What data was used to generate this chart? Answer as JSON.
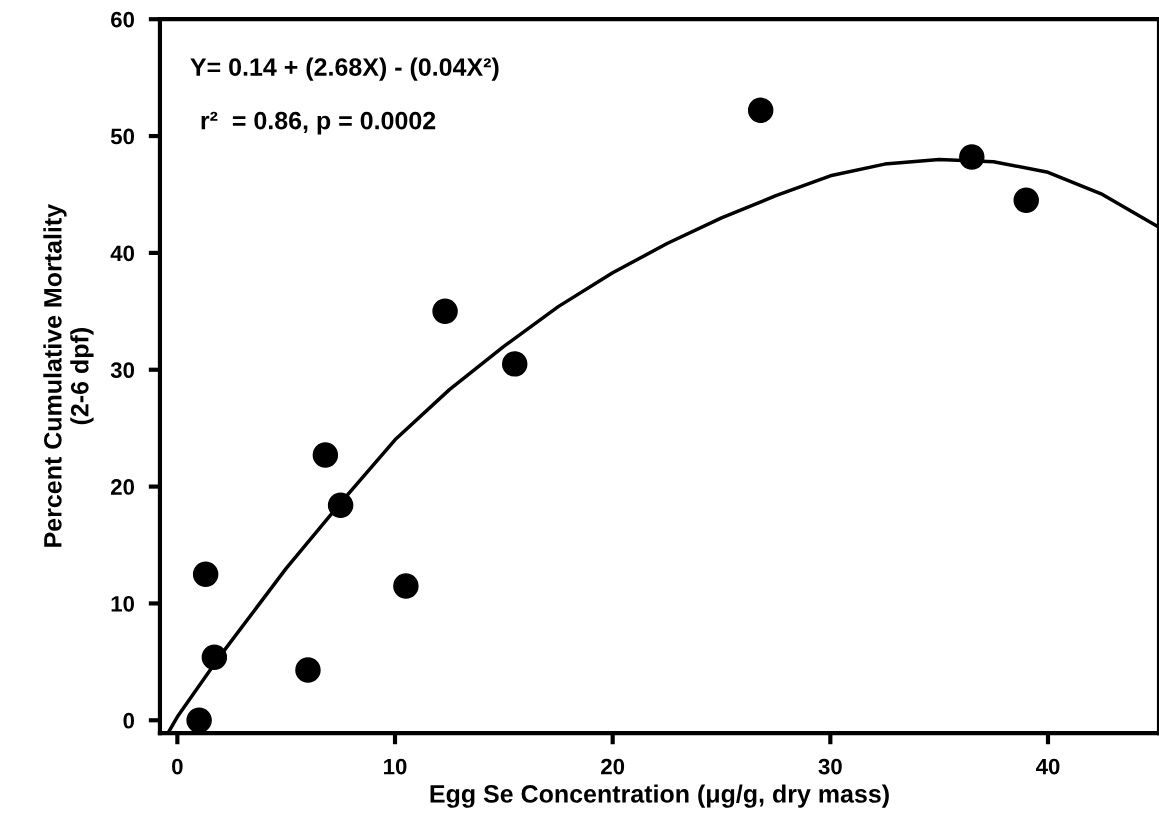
{
  "chart_data": {
    "type": "scatter",
    "xlabel": "Egg Se Concentration (μg/g, dry mass)",
    "ylabel": "Percent Cumulative Mortality\n(2-6 dpf)",
    "annotations": [
      "Y= 0.14 + (2.68X) - (0.04X²)",
      "r²  = 0.86, p = 0.0002"
    ],
    "xlim": [
      -0.8,
      45.1
    ],
    "ylim": [
      -1.1,
      60
    ],
    "xticks": [
      0,
      10,
      20,
      30,
      40
    ],
    "yticks": [
      0,
      10,
      20,
      30,
      40,
      50,
      60
    ],
    "grid": false,
    "legend": false,
    "marker": "circle",
    "series": [
      {
        "color": "#000000",
        "x": [
          1.0,
          1.3,
          1.7,
          6.0,
          6.8,
          7.5,
          10.5,
          12.3,
          15.5,
          26.8,
          36.5,
          39.0
        ],
        "values": [
          0,
          12.5,
          5.4,
          4.3,
          22.7,
          18.4,
          11.5,
          35,
          30.5,
          52.2,
          48.2,
          44.5
        ]
      },
      {
        "type": "line",
        "color": "#000000",
        "marker": "none",
        "line_style": "solid",
        "x": [
          -0.4,
          0,
          2,
          5,
          7.5,
          10,
          12.5,
          15,
          17.5,
          20,
          22.5,
          25,
          27.5,
          30,
          32.5,
          35,
          37.5,
          40,
          42.5,
          45.1
        ],
        "values": [
          -1,
          0.3,
          5.6,
          13,
          18.6,
          24,
          28.3,
          32,
          35.4,
          38.3,
          40.8,
          43,
          44.9,
          46.6,
          47.6,
          48,
          47.8,
          46.9,
          45,
          42.2
        ]
      }
    ]
  }
}
